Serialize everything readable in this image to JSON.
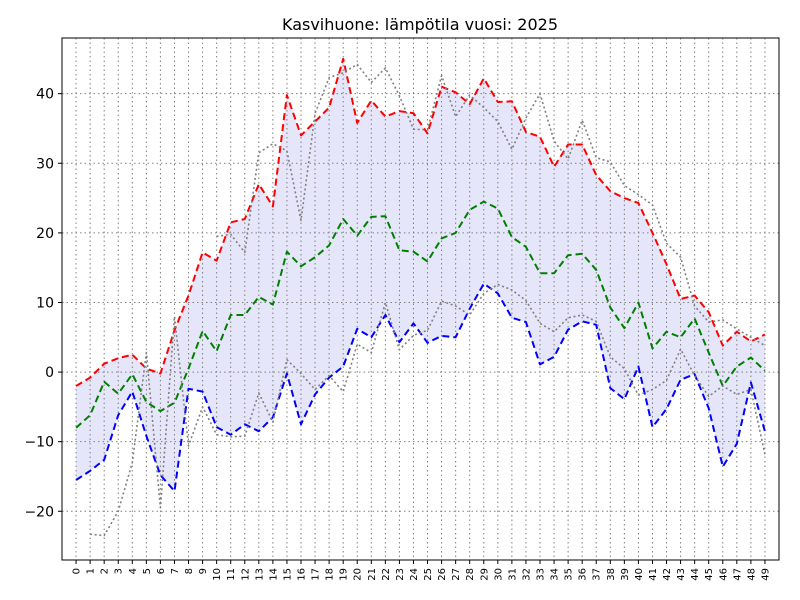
{
  "chart_data": {
    "type": "line",
    "title": "Kasvihuone: lämpötila vuosi: 2025",
    "xlabel": "",
    "ylabel": "",
    "x": [
      0,
      1,
      2,
      3,
      4,
      5,
      6,
      7,
      8,
      9,
      10,
      11,
      12,
      13,
      14,
      15,
      16,
      17,
      18,
      19,
      20,
      21,
      22,
      23,
      24,
      25,
      26,
      27,
      28,
      29,
      30,
      31,
      32,
      33,
      34,
      35,
      36,
      37,
      38,
      39,
      40,
      41,
      42,
      43,
      44,
      45,
      46,
      47,
      48,
      49
    ],
    "xlim": [
      -1,
      50
    ],
    "ylim": [
      -27,
      48
    ],
    "yticks": [
      -20,
      -10,
      0,
      10,
      20,
      30,
      40
    ],
    "grid": true,
    "series": [
      {
        "style": "dashed",
        "color": "#ff0000",
        "values": [
          -2,
          -0.8,
          1.2,
          2,
          2.5,
          0.5,
          -0.2,
          6,
          11,
          17.2,
          16,
          21.5,
          22,
          27,
          23.8,
          39.8,
          34,
          36,
          38,
          45,
          35.8,
          39,
          36.7,
          37.5,
          37.2,
          34.3,
          41,
          40.2,
          38.5,
          42.2,
          38.8,
          38.9,
          34.5,
          33.8,
          29.5,
          32.7,
          32.7,
          28.3,
          26,
          25,
          24.3,
          20,
          15.5,
          10.5,
          11,
          8.6,
          3.8,
          5.8,
          4.4,
          5.4
        ]
      },
      {
        "style": "dashed",
        "color": "#008000",
        "values": [
          -8,
          -6.2,
          -1.4,
          -3.1,
          -0.3,
          -4.3,
          -5.6,
          -4.4,
          0.5,
          5.9,
          3,
          8.2,
          8.2,
          10.8,
          9.7,
          17.3,
          15.2,
          16.5,
          18.2,
          22,
          19.6,
          22.3,
          22.4,
          17.5,
          17.3,
          15.9,
          19.2,
          20,
          23.3,
          24.5,
          23.5,
          19.4,
          18,
          14.2,
          14.2,
          16.8,
          17,
          14.7,
          9.3,
          6.3,
          10,
          3.4,
          5.8,
          5,
          7.7,
          2.8,
          -2,
          0.8,
          2.1,
          0.2
        ]
      },
      {
        "style": "dashed",
        "color": "#0000ff",
        "values": [
          -15.5,
          -14.2,
          -12.6,
          -6.2,
          -2.8,
          -9.2,
          -14.8,
          -17.1,
          -2.4,
          -2.8,
          -7.9,
          -9,
          -7.5,
          -8.5,
          -6.5,
          -0.2,
          -7.5,
          -3.2,
          -0.8,
          0.8,
          6.2,
          5,
          8.2,
          4.3,
          7,
          4.2,
          5.2,
          5,
          9.1,
          12.7,
          11.3,
          7.8,
          7.2,
          1.1,
          2.2,
          6.1,
          7.3,
          6.8,
          -2.3,
          -3.9,
          0.8,
          -7.9,
          -5.3,
          -1.1,
          -0.3,
          -5.2,
          -13.6,
          -10.3,
          -1.5,
          -8.5
        ]
      },
      {
        "style": "dotted",
        "color": "#808080",
        "values": [
          null,
          -23.3,
          -23.5,
          -20,
          -13,
          2.8,
          -19.5,
          8,
          -10.6,
          -5,
          -9,
          -9.3,
          -9.2,
          -3,
          -7.2,
          1.8,
          -0.2,
          -2.5,
          -0.5,
          -2.8,
          4,
          2.8,
          10,
          3.2,
          5.3,
          6,
          10.2,
          9.5,
          8.2,
          11.3,
          12.6,
          11.8,
          10.3,
          7,
          5.8,
          7.8,
          8.2,
          7.3,
          2.2,
          0.5,
          -3.3,
          -2.5,
          -1.2,
          3.3,
          -0.5,
          -3.5,
          -2,
          -3.2,
          -2.5,
          -11.8
        ]
      },
      {
        "style": "dotted",
        "color": "#808080",
        "values": [
          null,
          null,
          null,
          null,
          null,
          null,
          null,
          null,
          null,
          null,
          19.5,
          19.8,
          17.2,
          31.5,
          32.8,
          31.8,
          21.8,
          37.2,
          42.3,
          43,
          44.2,
          41.6,
          43.7,
          39.7,
          34.9,
          34.8,
          42.6,
          36.7,
          39.8,
          38,
          36,
          32,
          36.5,
          40,
          33.2,
          30.6,
          36.2,
          30.8,
          30.2,
          26.8,
          25.5,
          24,
          18.5,
          16.5,
          9.5,
          7.2,
          7.5,
          6.2,
          5,
          3.8
        ]
      }
    ],
    "band": {
      "color": "#e6e6fa",
      "between": [
        0,
        2
      ]
    }
  }
}
